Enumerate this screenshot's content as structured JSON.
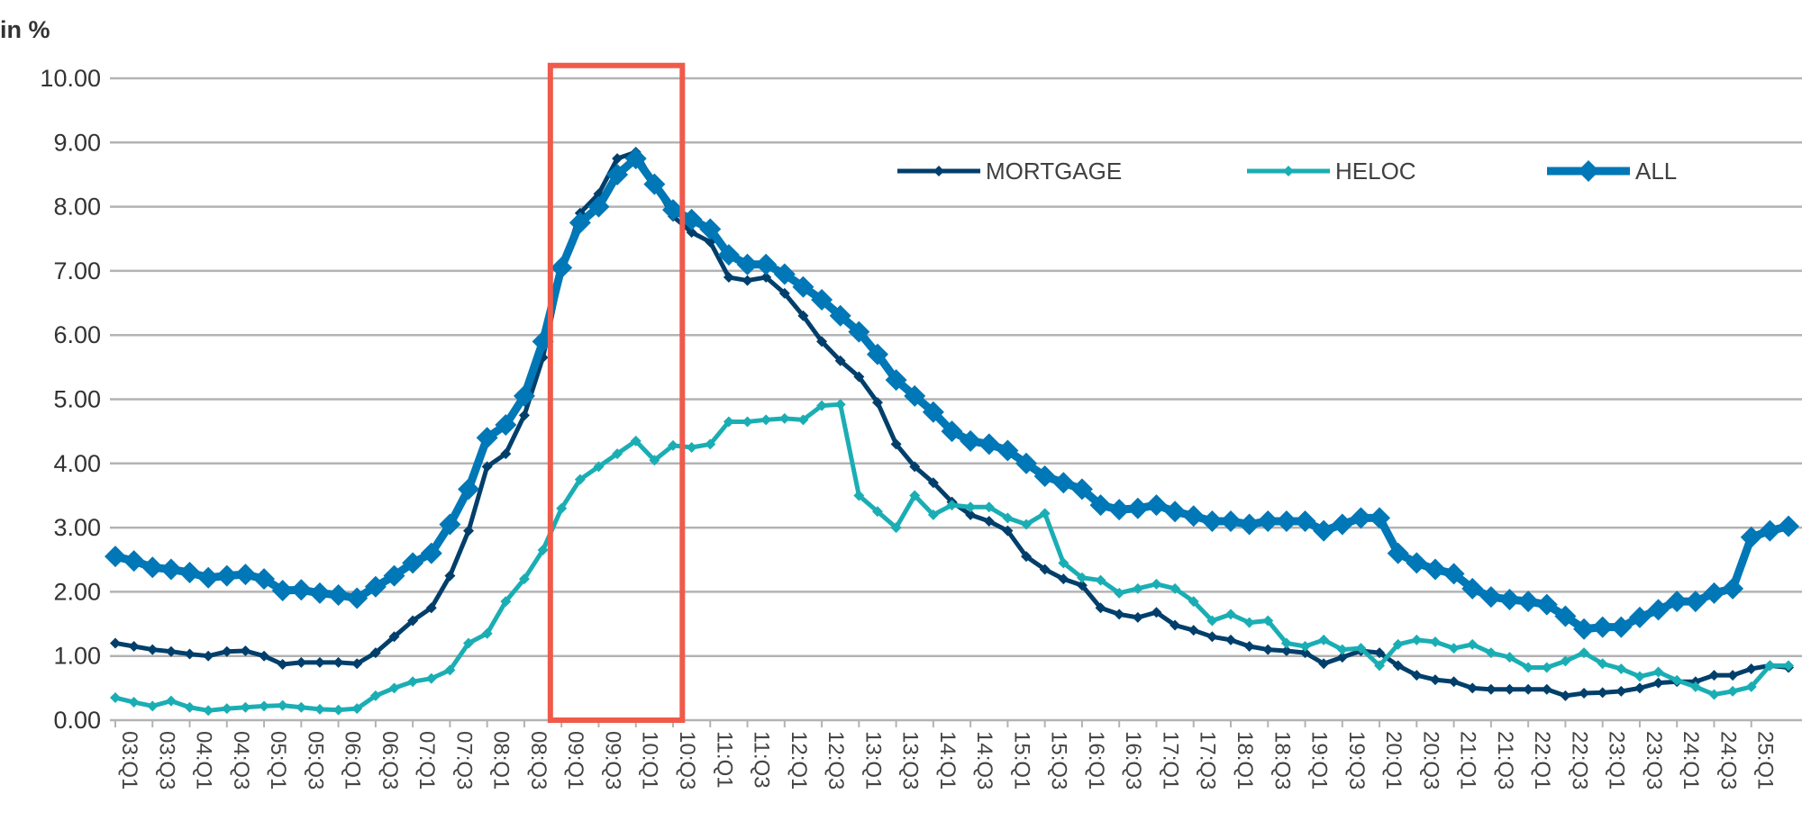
{
  "chart_data": {
    "type": "line",
    "title": "",
    "unit_label": "in %",
    "xlabel": "",
    "ylabel": "",
    "ylim": [
      0,
      10
    ],
    "yticks": [
      "0.00",
      "1.00",
      "2.00",
      "3.00",
      "4.00",
      "5.00",
      "6.00",
      "7.00",
      "8.00",
      "9.00",
      "10.00"
    ],
    "grid": true,
    "legend_position": "top-right",
    "x": [
      "03:Q1",
      "03:Q2",
      "03:Q3",
      "03:Q4",
      "04:Q1",
      "04:Q2",
      "04:Q3",
      "04:Q4",
      "05:Q1",
      "05:Q2",
      "05:Q3",
      "05:Q4",
      "06:Q1",
      "06:Q2",
      "06:Q3",
      "06:Q4",
      "07:Q1",
      "07:Q2",
      "07:Q3",
      "07:Q4",
      "08:Q1",
      "08:Q2",
      "08:Q3",
      "08:Q4",
      "09:Q1",
      "09:Q2",
      "09:Q3",
      "09:Q4",
      "10:Q1",
      "10:Q2",
      "10:Q3",
      "10:Q4",
      "11:Q1",
      "11:Q2",
      "11:Q3",
      "11:Q4",
      "12:Q1",
      "12:Q2",
      "12:Q3",
      "12:Q4",
      "13:Q1",
      "13:Q2",
      "13:Q3",
      "13:Q4",
      "14:Q1",
      "14:Q2",
      "14:Q3",
      "14:Q4",
      "15:Q1",
      "15:Q2",
      "15:Q3",
      "15:Q4",
      "16:Q1",
      "16:Q2",
      "16:Q3",
      "16:Q4",
      "17:Q1",
      "17:Q2",
      "17:Q3",
      "17:Q4",
      "18:Q1",
      "18:Q2",
      "18:Q3",
      "18:Q4",
      "19:Q1",
      "19:Q2",
      "19:Q3",
      "19:Q4",
      "20:Q1",
      "20:Q2",
      "20:Q3",
      "20:Q4",
      "21:Q1",
      "21:Q2",
      "21:Q3",
      "21:Q4",
      "22:Q1",
      "22:Q2",
      "22:Q3",
      "22:Q4",
      "23:Q1",
      "23:Q2",
      "23:Q3",
      "23:Q4",
      "24:Q1",
      "24:Q2",
      "24:Q3",
      "24:Q4",
      "25:Q1",
      "25:Q2",
      "25:Q3"
    ],
    "xtick_labels": [
      "03:Q1",
      "03:Q3",
      "04:Q1",
      "04:Q3",
      "05:Q1",
      "05:Q3",
      "06:Q1",
      "06:Q3",
      "07:Q1",
      "07:Q3",
      "08:Q1",
      "08:Q3",
      "09:Q1",
      "09:Q3",
      "10:Q1",
      "10:Q3",
      "11:Q1",
      "11:Q3",
      "12:Q1",
      "12:Q3",
      "13:Q1",
      "13:Q3",
      "14:Q1",
      "14:Q3",
      "15:Q1",
      "15:Q3",
      "16:Q1",
      "16:Q3",
      "17:Q1",
      "17:Q3",
      "18:Q1",
      "18:Q3",
      "19:Q1",
      "19:Q3",
      "20:Q1",
      "20:Q3",
      "21:Q1",
      "21:Q3",
      "22:Q1",
      "22:Q3",
      "23:Q1",
      "23:Q3",
      "24:Q1",
      "24:Q3",
      "25:Q1"
    ],
    "series": [
      {
        "name": "MORTGAGE",
        "color": "#003f6b",
        "values": [
          1.2,
          1.15,
          1.1,
          1.07,
          1.03,
          1.0,
          1.07,
          1.08,
          1.0,
          0.87,
          0.9,
          0.9,
          0.9,
          0.88,
          1.05,
          1.3,
          1.55,
          1.75,
          2.25,
          2.95,
          3.95,
          4.15,
          4.75,
          5.65,
          7.0,
          7.9,
          8.2,
          8.75,
          8.85,
          8.35,
          7.85,
          7.6,
          7.45,
          6.9,
          6.85,
          6.9,
          6.65,
          6.3,
          5.9,
          5.6,
          5.35,
          4.95,
          4.3,
          3.95,
          3.7,
          3.4,
          3.2,
          3.1,
          2.95,
          2.55,
          2.35,
          2.2,
          2.1,
          1.75,
          1.65,
          1.6,
          1.68,
          1.48,
          1.4,
          1.3,
          1.25,
          1.15,
          1.1,
          1.08,
          1.05,
          0.88,
          0.98,
          1.08,
          1.05,
          0.85,
          0.7,
          0.63,
          0.6,
          0.5,
          0.48,
          0.48,
          0.48,
          0.48,
          0.38,
          0.42,
          0.43,
          0.45,
          0.5,
          0.58,
          0.6,
          0.6,
          0.7,
          0.7,
          0.8,
          0.85,
          0.82
        ]
      },
      {
        "name": "HELOC",
        "color": "#1aaeb4",
        "values": [
          0.35,
          0.28,
          0.22,
          0.3,
          0.2,
          0.15,
          0.18,
          0.2,
          0.22,
          0.23,
          0.2,
          0.17,
          0.16,
          0.18,
          0.38,
          0.5,
          0.6,
          0.65,
          0.78,
          1.2,
          1.35,
          1.85,
          2.2,
          2.65,
          3.3,
          3.75,
          3.95,
          4.15,
          4.35,
          4.05,
          4.28,
          4.25,
          4.3,
          4.65,
          4.65,
          4.68,
          4.7,
          4.68,
          4.9,
          4.92,
          3.5,
          3.25,
          3.0,
          3.5,
          3.2,
          3.35,
          3.32,
          3.32,
          3.15,
          3.05,
          3.22,
          2.45,
          2.22,
          2.18,
          1.98,
          2.05,
          2.12,
          2.05,
          1.85,
          1.55,
          1.65,
          1.52,
          1.55,
          1.2,
          1.15,
          1.25,
          1.1,
          1.12,
          0.85,
          1.18,
          1.25,
          1.22,
          1.12,
          1.18,
          1.05,
          0.98,
          0.82,
          0.82,
          0.92,
          1.05,
          0.88,
          0.8,
          0.68,
          0.75,
          0.62,
          0.52,
          0.4,
          0.45,
          0.52,
          0.85,
          0.85
        ]
      },
      {
        "name": "ALL",
        "color": "#0077b6",
        "values": [
          2.55,
          2.48,
          2.38,
          2.35,
          2.3,
          2.22,
          2.25,
          2.27,
          2.2,
          2.02,
          2.03,
          1.98,
          1.95,
          1.9,
          2.08,
          2.25,
          2.45,
          2.6,
          3.05,
          3.6,
          4.4,
          4.6,
          5.05,
          5.9,
          7.05,
          7.75,
          8.0,
          8.5,
          8.75,
          8.35,
          7.95,
          7.8,
          7.65,
          7.25,
          7.1,
          7.1,
          6.95,
          6.75,
          6.55,
          6.3,
          6.05,
          5.7,
          5.3,
          5.05,
          4.8,
          4.5,
          4.35,
          4.3,
          4.2,
          4.0,
          3.8,
          3.7,
          3.6,
          3.35,
          3.28,
          3.3,
          3.35,
          3.25,
          3.18,
          3.1,
          3.1,
          3.05,
          3.1,
          3.1,
          3.1,
          2.95,
          3.05,
          3.15,
          3.15,
          2.6,
          2.45,
          2.35,
          2.28,
          2.05,
          1.92,
          1.88,
          1.85,
          1.8,
          1.62,
          1.42,
          1.45,
          1.45,
          1.6,
          1.72,
          1.85,
          1.85,
          1.98,
          2.05,
          2.85,
          2.95,
          3.02
        ]
      }
    ],
    "highlight": {
      "from": "08:Q4",
      "to": "10:Q3",
      "color": "#f05a4a"
    }
  }
}
